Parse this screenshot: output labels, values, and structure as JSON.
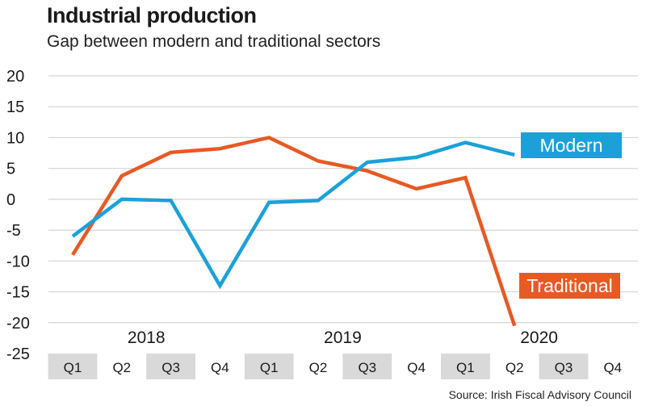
{
  "chart_data": {
    "type": "line",
    "title": "Industrial production",
    "subtitle": "Gap between modern and traditional sectors",
    "source": "Source: Irish Fiscal Advisory Council",
    "xlabel": "",
    "ylabel": "",
    "ylim": [
      -25,
      20
    ],
    "yticks": [
      20,
      15,
      10,
      5,
      0,
      -5,
      -10,
      -15,
      -20,
      -25
    ],
    "grid": true,
    "legend": "inline",
    "quarters": [
      "Q1",
      "Q2",
      "Q3",
      "Q4",
      "Q1",
      "Q2",
      "Q3",
      "Q4",
      "Q1",
      "Q2",
      "Q3",
      "Q4"
    ],
    "years": [
      {
        "label": "2018",
        "first_quarter": 0
      },
      {
        "label": "2019",
        "first_quarter": 4
      },
      {
        "label": "2020",
        "first_quarter": 8
      }
    ],
    "x": [
      "2018 Q1",
      "2018 Q2",
      "2018 Q3",
      "2018 Q4",
      "2019 Q1",
      "2019 Q2",
      "2019 Q3",
      "2019 Q4",
      "2020 Q1",
      "2020 Q2"
    ],
    "series": [
      {
        "name": "Modern",
        "color": "#1ba1d8",
        "values": [
          -6,
          0,
          -0.2,
          -14,
          -0.5,
          -0.2,
          6,
          6.8,
          9.2,
          7.2
        ]
      },
      {
        "name": "Traditional",
        "color": "#e65a24",
        "values": [
          -9,
          3.8,
          7.6,
          8.2,
          10,
          6.2,
          4.6,
          1.7,
          3.5,
          -20.5
        ]
      }
    ]
  }
}
